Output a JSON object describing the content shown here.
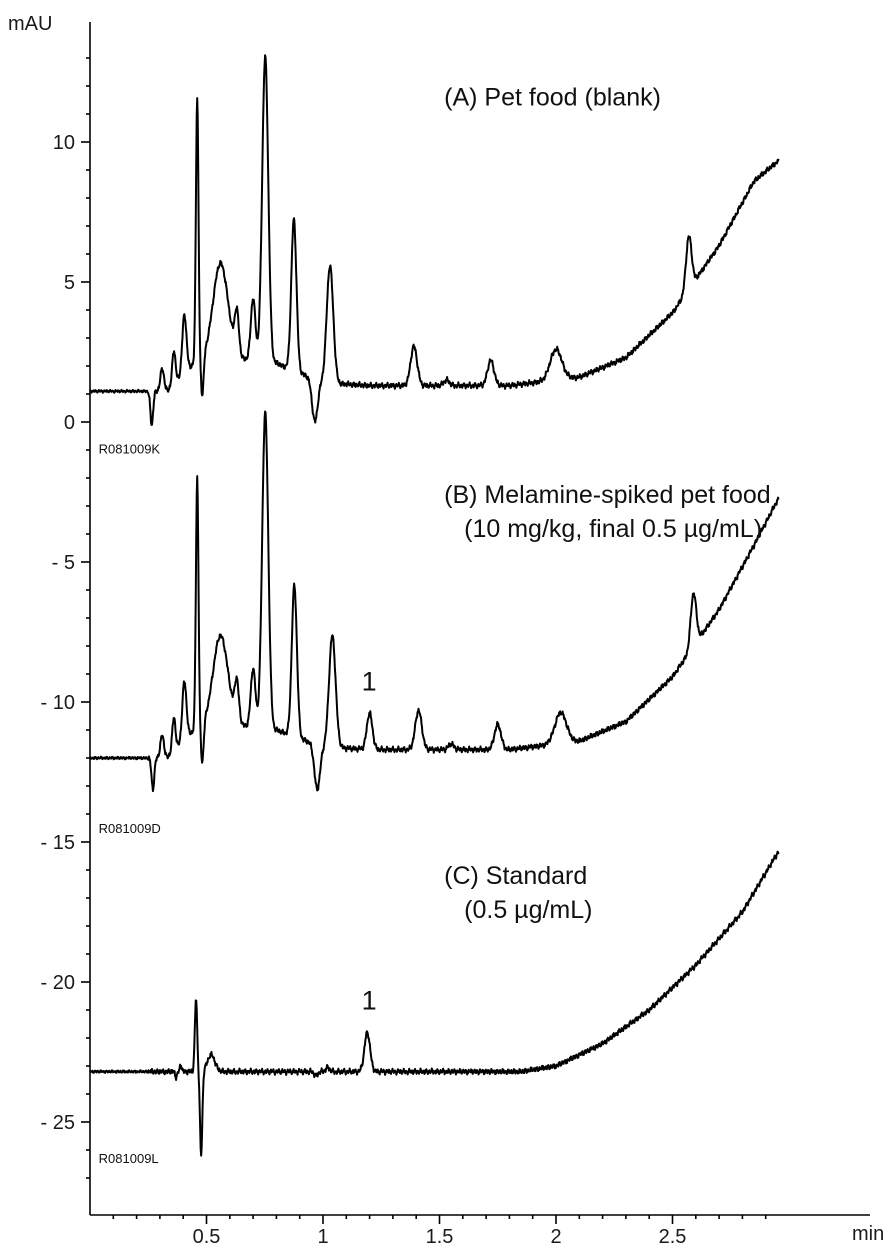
{
  "chart_data": {
    "type": "line",
    "ylabel": "mAU",
    "xlabel": "min",
    "xlim": [
      0,
      3.0
    ],
    "ylim": [
      -28,
      14
    ],
    "xticks": [
      {
        "value": 0.5,
        "label": "0.5"
      },
      {
        "value": 1.0,
        "label": "1"
      },
      {
        "value": 1.5,
        "label": "1.5"
      },
      {
        "value": 2.0,
        "label": "2"
      },
      {
        "value": 2.5,
        "label": "2.5"
      }
    ],
    "yticks": [
      {
        "value": 10,
        "label": "10"
      },
      {
        "value": 5,
        "label": "5"
      },
      {
        "value": 0,
        "label": "0"
      },
      {
        "value": -5,
        "label": "- 5"
      },
      {
        "value": -10,
        "label": "- 10"
      },
      {
        "value": -15,
        "label": "- 15"
      },
      {
        "value": -20,
        "label": "- 20"
      },
      {
        "value": -25,
        "label": "- 25"
      }
    ],
    "grid": false,
    "series": [
      {
        "name": "A",
        "title_lines": [
          "(A) Pet food (blank)"
        ],
        "title_at": {
          "x": 1.52,
          "y": 11.3
        },
        "file_id": "R081009K",
        "file_id_at": {
          "x": 0.02,
          "y": -0.55
        },
        "baseline": 1.1,
        "peaks": [
          {
            "x": 0.265,
            "h": -1.2,
            "w": 0.006
          },
          {
            "x": 0.31,
            "h": 0.8,
            "w": 0.008
          },
          {
            "x": 0.36,
            "h": 1.2,
            "w": 0.007
          },
          {
            "x": 0.405,
            "h": 2.1,
            "w": 0.009
          },
          {
            "x": 0.46,
            "h": 9.4,
            "w": 0.0055
          },
          {
            "x": 0.482,
            "h": -1.4,
            "w": 0.006
          },
          {
            "x": 0.56,
            "h": 3.4,
            "w": 0.032
          },
          {
            "x": 0.63,
            "h": 1.5,
            "w": 0.009
          },
          {
            "x": 0.7,
            "h": 2.2,
            "w": 0.01
          },
          {
            "x": 0.752,
            "h": 10.9,
            "w": 0.013
          },
          {
            "x": 0.875,
            "h": 5.4,
            "w": 0.011
          },
          {
            "x": 0.965,
            "h": -1.5,
            "w": 0.012
          },
          {
            "x": 1.03,
            "h": 4.2,
            "w": 0.014
          },
          {
            "x": 1.39,
            "h": 1.4,
            "w": 0.014
          },
          {
            "x": 1.53,
            "h": 0.2,
            "w": 0.012
          },
          {
            "x": 1.72,
            "h": 0.9,
            "w": 0.014
          },
          {
            "x": 2.0,
            "h": 1.1,
            "w": 0.025
          },
          {
            "x": 2.57,
            "h": 1.9,
            "w": 0.012
          }
        ],
        "drift": [
          {
            "x": 0.33,
            "y": 0
          },
          {
            "x": 0.46,
            "y": 1.1
          },
          {
            "x": 0.6,
            "y": 1.2
          },
          {
            "x": 0.8,
            "y": 1.0
          },
          {
            "x": 1.0,
            "y": 0.3
          },
          {
            "x": 1.2,
            "y": 0.2
          },
          {
            "x": 1.8,
            "y": 0.2
          },
          {
            "x": 2.1,
            "y": 0.5
          },
          {
            "x": 2.3,
            "y": 1.2
          },
          {
            "x": 2.5,
            "y": 2.8
          },
          {
            "x": 2.7,
            "y": 5.2
          },
          {
            "x": 2.85,
            "y": 7.5
          },
          {
            "x": 2.95,
            "y": 8.2
          }
        ]
      },
      {
        "name": "B",
        "title_lines": [
          "(B) Melamine-spiked pet food",
          "(10 mg/kg, final 0.5 µg/mL)"
        ],
        "title_at": {
          "x": 1.52,
          "y": -2.9
        },
        "file_id": "R081009D",
        "file_id_at": {
          "x": 0.02,
          "y": -14.1
        },
        "baseline": -12.0,
        "peaks": [
          {
            "x": 0.27,
            "h": -1.1,
            "w": 0.006
          },
          {
            "x": 0.31,
            "h": 0.8,
            "w": 0.008
          },
          {
            "x": 0.36,
            "h": 1.2,
            "w": 0.007
          },
          {
            "x": 0.405,
            "h": 2.1,
            "w": 0.009
          },
          {
            "x": 0.46,
            "h": 8.9,
            "w": 0.0055
          },
          {
            "x": 0.482,
            "h": -1.4,
            "w": 0.006
          },
          {
            "x": 0.56,
            "h": 3.2,
            "w": 0.032
          },
          {
            "x": 0.63,
            "h": 1.4,
            "w": 0.009
          },
          {
            "x": 0.7,
            "h": 2.1,
            "w": 0.01
          },
          {
            "x": 0.752,
            "h": 11.3,
            "w": 0.013
          },
          {
            "x": 0.877,
            "h": 5.4,
            "w": 0.011
          },
          {
            "x": 0.975,
            "h": -1.6,
            "w": 0.012
          },
          {
            "x": 1.04,
            "h": 4.0,
            "w": 0.014
          },
          {
            "x": 1.2,
            "h": 1.3,
            "w": 0.012
          },
          {
            "x": 1.41,
            "h": 1.4,
            "w": 0.014
          },
          {
            "x": 1.55,
            "h": 0.2,
            "w": 0.012
          },
          {
            "x": 1.75,
            "h": 0.9,
            "w": 0.014
          },
          {
            "x": 2.02,
            "h": 1.1,
            "w": 0.025
          },
          {
            "x": 2.59,
            "h": 1.9,
            "w": 0.012
          }
        ],
        "drift": [
          {
            "x": 0.33,
            "y": 0
          },
          {
            "x": 0.46,
            "y": 1.1
          },
          {
            "x": 0.6,
            "y": 1.2
          },
          {
            "x": 0.8,
            "y": 1.0
          },
          {
            "x": 1.0,
            "y": 0.4
          },
          {
            "x": 1.2,
            "y": 0.3
          },
          {
            "x": 1.8,
            "y": 0.3
          },
          {
            "x": 2.1,
            "y": 0.6
          },
          {
            "x": 2.3,
            "y": 1.3
          },
          {
            "x": 2.5,
            "y": 2.9
          },
          {
            "x": 2.7,
            "y": 5.3
          },
          {
            "x": 2.85,
            "y": 7.6
          },
          {
            "x": 2.95,
            "y": 9.2
          }
        ]
      },
      {
        "name": "C",
        "title_lines": [
          "(C) Standard",
          "(0.5 µg/mL)"
        ],
        "title_at": {
          "x": 1.52,
          "y": -16.5
        },
        "file_id": "R081009L",
        "file_id_at": {
          "x": 0.02,
          "y": -25.9
        },
        "baseline": -23.2,
        "peaks": [
          {
            "x": 0.37,
            "h": -0.2,
            "w": 0.004
          },
          {
            "x": 0.39,
            "h": 0.25,
            "w": 0.004
          },
          {
            "x": 0.455,
            "h": 2.6,
            "w": 0.005
          },
          {
            "x": 0.477,
            "h": -3.0,
            "w": 0.005
          },
          {
            "x": 0.52,
            "h": 0.6,
            "w": 0.016
          },
          {
            "x": 0.97,
            "h": -0.15,
            "w": 0.008
          },
          {
            "x": 1.02,
            "h": 0.15,
            "w": 0.008
          },
          {
            "x": 1.19,
            "h": 1.4,
            "w": 0.012
          }
        ],
        "drift": [
          {
            "x": 0.3,
            "y": 0
          },
          {
            "x": 1.85,
            "y": 0.0
          },
          {
            "x": 2.0,
            "y": 0.2
          },
          {
            "x": 2.2,
            "y": 1.0
          },
          {
            "x": 2.4,
            "y": 2.2
          },
          {
            "x": 2.6,
            "y": 3.8
          },
          {
            "x": 2.8,
            "y": 5.7
          },
          {
            "x": 2.95,
            "y": 7.8
          }
        ]
      }
    ],
    "annotations": [
      {
        "text": "1",
        "x": 1.2,
        "y": -9.3
      },
      {
        "text": "1",
        "x": 1.2,
        "y": -20.7
      }
    ]
  }
}
